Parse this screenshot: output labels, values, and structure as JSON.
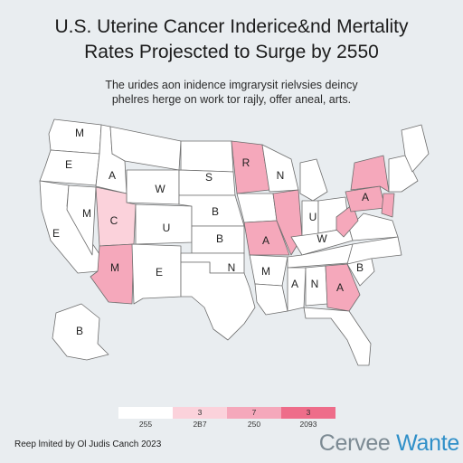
{
  "header": {
    "title_line1": "U.S. Uterine Cancer Inderice&nd Mertality",
    "title_line2": "Rates Projescted to Surge by 2550",
    "subtitle_line1": "The urides aon inidence imgrarysit rielvsies deincy",
    "subtitle_line2": "phelres herge on work tor rajly, offer aneal, arts."
  },
  "colors": {
    "background": "#e9edf0",
    "tier_1": "#ffffff",
    "tier_2": "#fbd2db",
    "tier_3": "#f5a8bb",
    "tier_4": "#ee6d8a",
    "border": "#6d6d6d"
  },
  "states": [
    {
      "id": "WA",
      "letter": "M",
      "tier": 1
    },
    {
      "id": "OR",
      "letter": "E",
      "tier": 1
    },
    {
      "id": "CA",
      "letter": "M",
      "tier": 1
    },
    {
      "id": "NV",
      "letter": "E",
      "tier": 1
    },
    {
      "id": "ID",
      "letter": "A",
      "tier": 1
    },
    {
      "id": "MT",
      "letter": "",
      "tier": 1
    },
    {
      "id": "WY",
      "letter": "W",
      "tier": 1
    },
    {
      "id": "UT",
      "letter": "C",
      "tier": 2
    },
    {
      "id": "CO",
      "letter": "U",
      "tier": 1
    },
    {
      "id": "AZ",
      "letter": "M",
      "tier": 3
    },
    {
      "id": "NM",
      "letter": "E",
      "tier": 1
    },
    {
      "id": "ND",
      "letter": "",
      "tier": 1
    },
    {
      "id": "SD",
      "letter": "S",
      "tier": 1
    },
    {
      "id": "NE",
      "letter": "B",
      "tier": 1
    },
    {
      "id": "KS",
      "letter": "B",
      "tier": 1
    },
    {
      "id": "OK",
      "letter": "",
      "tier": 1
    },
    {
      "id": "TX",
      "letter": "N",
      "tier": 1
    },
    {
      "id": "MN",
      "letter": "R",
      "tier": 3
    },
    {
      "id": "IA",
      "letter": "",
      "tier": 1
    },
    {
      "id": "MO",
      "letter": "A",
      "tier": 3
    },
    {
      "id": "AR",
      "letter": "M",
      "tier": 1
    },
    {
      "id": "LA",
      "letter": "",
      "tier": 1
    },
    {
      "id": "WI",
      "letter": "N",
      "tier": 1
    },
    {
      "id": "IL",
      "letter": "",
      "tier": 3
    },
    {
      "id": "MI",
      "letter": "",
      "tier": 1
    },
    {
      "id": "IN",
      "letter": "U",
      "tier": 1
    },
    {
      "id": "OH",
      "letter": "",
      "tier": 1
    },
    {
      "id": "KY",
      "letter": "W",
      "tier": 1
    },
    {
      "id": "TN",
      "letter": "",
      "tier": 1
    },
    {
      "id": "MS",
      "letter": "A",
      "tier": 1
    },
    {
      "id": "AL",
      "letter": "N",
      "tier": 1
    },
    {
      "id": "GA",
      "letter": "A",
      "tier": 3
    },
    {
      "id": "FL",
      "letter": "",
      "tier": 1
    },
    {
      "id": "SC",
      "letter": "B",
      "tier": 1
    },
    {
      "id": "NC",
      "letter": "",
      "tier": 1
    },
    {
      "id": "VA",
      "letter": "",
      "tier": 1
    },
    {
      "id": "WV",
      "letter": "",
      "tier": 3
    },
    {
      "id": "PA",
      "letter": "A",
      "tier": 3
    },
    {
      "id": "NY",
      "letter": "",
      "tier": 3
    },
    {
      "id": "NJ",
      "letter": "",
      "tier": 3
    },
    {
      "id": "NE_US",
      "letter": "",
      "tier": 1
    },
    {
      "id": "ME",
      "letter": "",
      "tier": 1
    },
    {
      "id": "AK",
      "letter": "B",
      "tier": 1
    }
  ],
  "legend": [
    {
      "swatch_label": "",
      "value": "255",
      "tier": 1
    },
    {
      "swatch_label": "3",
      "value": "2B7",
      "tier": 2
    },
    {
      "swatch_label": "7",
      "value": "250",
      "tier": 3
    },
    {
      "swatch_label": "3",
      "value": "2093",
      "tier": 4
    }
  ],
  "footer": {
    "source": "Reep lmited by Ol Judis Canch 2023",
    "brand_main": "Cervee ",
    "brand_accent": "Wante"
  }
}
